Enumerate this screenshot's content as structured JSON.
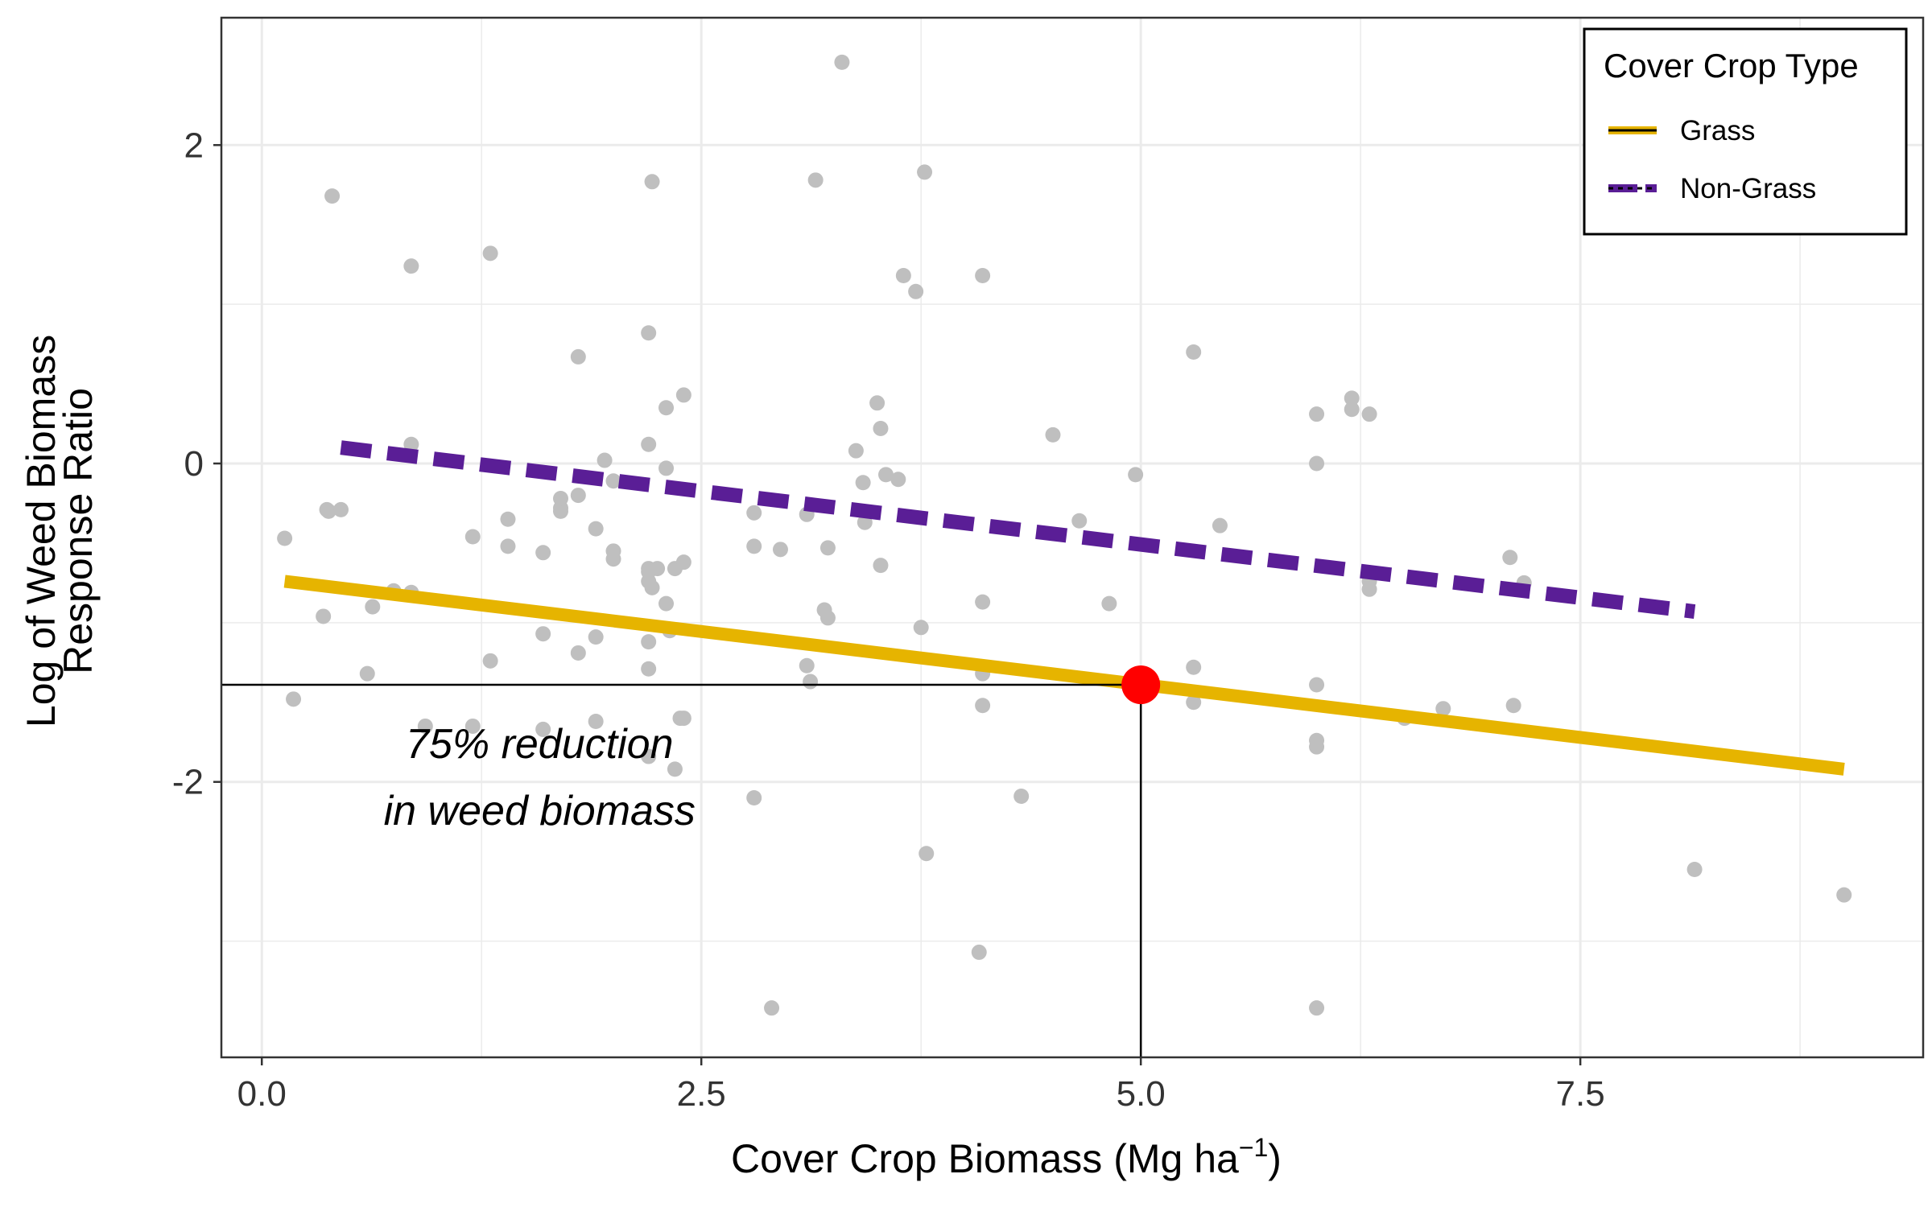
{
  "chart_data": {
    "type": "scatter",
    "xlabel_main": "Cover Crop Biomass (Mg ha",
    "xlabel_sup": "−1",
    "xlabel_end": ")",
    "ylabel_line1": "Log of Weed Biomass",
    "ylabel_line2": "Response Ratio",
    "xlim": [
      -0.23,
      9.45
    ],
    "ylim": [
      -3.73,
      2.8
    ],
    "x_ticks": [
      0.0,
      2.5,
      5.0,
      7.5
    ],
    "x_tick_labels": [
      "0.0",
      "2.5",
      "5.0",
      "7.5"
    ],
    "y_ticks": [
      -2,
      0,
      2
    ],
    "y_tick_labels": [
      "-2",
      "0",
      "2"
    ],
    "highlight_tick": "5.0",
    "grid": true,
    "legend": {
      "title": "Cover Crop Type",
      "position": "top-right",
      "entries": [
        {
          "label": "Grass",
          "color": "#E6B400",
          "style": "solid"
        },
        {
          "label": "Non-Grass",
          "color": "#5A1E96",
          "style": "dashed"
        }
      ]
    },
    "series": [
      {
        "name": "Grass",
        "type": "line",
        "color": "#E6B400",
        "x": [
          0.13,
          9.0
        ],
        "y": [
          -0.74,
          -1.92
        ]
      },
      {
        "name": "Non-Grass",
        "type": "line",
        "color": "#5A1E96",
        "x": [
          0.45,
          8.15
        ],
        "y": [
          0.1,
          -0.93
        ]
      }
    ],
    "points": {
      "color": "#BFBFBF",
      "x": [
        0.13,
        0.18,
        0.35,
        0.37,
        0.4,
        0.38,
        0.45,
        0.63,
        0.6,
        0.75,
        0.85,
        0.85,
        0.85,
        0.93,
        1.2,
        1.2,
        1.3,
        1.3,
        1.4,
        1.4,
        1.6,
        1.6,
        1.6,
        1.7,
        1.7,
        1.7,
        1.8,
        1.8,
        1.8,
        1.9,
        1.9,
        1.9,
        1.95,
        2.0,
        2.0,
        2.0,
        2.2,
        2.2,
        2.2,
        2.2,
        2.2,
        2.2,
        2.2,
        2.2,
        2.22,
        2.22,
        2.25,
        2.3,
        2.3,
        2.3,
        2.32,
        2.35,
        2.35,
        2.38,
        2.4,
        2.4,
        2.4,
        2.8,
        2.8,
        2.8,
        2.9,
        2.95,
        3.1,
        3.1,
        3.12,
        3.15,
        3.2,
        3.22,
        3.22,
        3.3,
        3.38,
        3.42,
        3.43,
        3.5,
        3.52,
        3.52,
        3.55,
        3.62,
        3.65,
        3.72,
        3.75,
        3.77,
        3.78,
        4.1,
        4.1,
        4.1,
        4.1,
        4.08,
        4.32,
        4.5,
        4.65,
        4.82,
        4.97,
        5.3,
        5.3,
        5.3,
        5.45,
        6.0,
        6.0,
        6.0,
        6.0,
        6.0,
        6.0,
        6.2,
        6.2,
        6.3,
        6.3,
        6.3,
        6.5,
        6.72,
        7.1,
        7.12,
        7.18,
        8.15,
        9.0
      ],
      "y": [
        -0.47,
        -1.48,
        -0.96,
        -0.29,
        1.68,
        -0.3,
        -0.29,
        -0.9,
        -1.32,
        -0.8,
        1.24,
        0.12,
        -0.81,
        -1.65,
        -0.46,
        -1.65,
        1.32,
        -1.24,
        -0.35,
        -0.52,
        -0.56,
        -1.07,
        -1.67,
        -0.28,
        -0.3,
        -0.22,
        0.67,
        -0.2,
        -1.19,
        -0.41,
        -1.09,
        -1.62,
        0.02,
        -0.55,
        -0.6,
        -0.11,
        0.82,
        0.12,
        -0.66,
        -0.74,
        -0.68,
        -1.12,
        -1.29,
        -1.84,
        1.77,
        -0.78,
        -0.66,
        0.35,
        -0.03,
        -0.88,
        -1.05,
        -0.66,
        -1.92,
        -1.6,
        0.43,
        -0.62,
        -1.6,
        -0.31,
        -0.52,
        -2.1,
        -3.42,
        -0.54,
        -0.32,
        -1.27,
        -1.37,
        1.78,
        -0.92,
        -0.97,
        -0.53,
        2.52,
        0.08,
        -0.12,
        -0.37,
        0.38,
        0.22,
        -0.64,
        -0.07,
        -0.1,
        1.18,
        1.08,
        -1.03,
        1.83,
        -2.45,
        1.18,
        -0.87,
        -1.32,
        -1.52,
        -3.07,
        -2.09,
        0.18,
        -0.36,
        -0.88,
        -0.07,
        0.7,
        -1.28,
        -1.5,
        -0.39,
        0.31,
        0.0,
        -1.39,
        -1.74,
        -1.78,
        -3.42,
        0.41,
        0.34,
        0.31,
        -0.74,
        -0.79,
        -1.6,
        -1.54,
        -0.59,
        -1.52,
        -0.75,
        -2.55,
        -2.71
      ]
    },
    "highlight_point": {
      "x": 5.0,
      "y": -1.39,
      "color": "#FF0000"
    },
    "reference_lines": {
      "x": 5.0,
      "y": -1.39
    },
    "annotation": {
      "line1": "75% reduction",
      "line2": "in weed biomass",
      "x": 1.58,
      "y1": -1.85,
      "y2": -2.27
    }
  }
}
